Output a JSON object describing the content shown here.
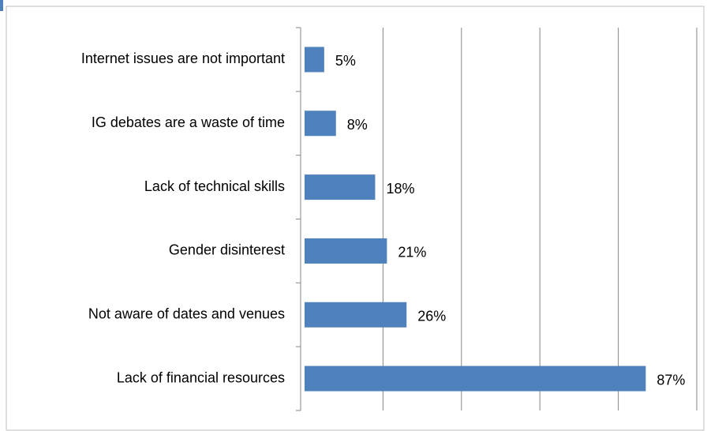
{
  "chart_data": {
    "type": "bar",
    "orientation": "horizontal",
    "categories": [
      "Internet issues are not important",
      "IG debates are a waste of time",
      "Lack of technical skills",
      "Gender disinterest",
      "Not aware of dates and venues",
      "Lack of financial resources"
    ],
    "values": [
      5,
      8,
      18,
      21,
      26,
      87
    ],
    "value_labels": [
      "5%",
      "8%",
      "18%",
      "21%",
      "26%",
      "87%"
    ],
    "color": "#4f81bd",
    "xlim": [
      0,
      100
    ],
    "xticks": [
      0,
      20,
      40,
      60,
      80,
      100
    ],
    "grid": true
  }
}
